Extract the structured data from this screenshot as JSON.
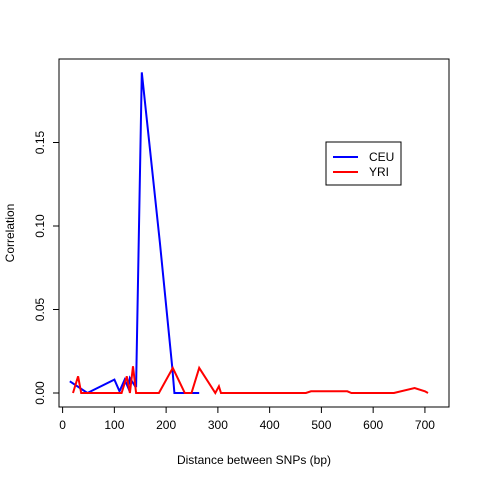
{
  "chart_data": {
    "type": "line",
    "title": "",
    "xlabel": "Distance between SNPs (bp)",
    "ylabel": "Correlation",
    "xlim": [
      0,
      720
    ],
    "ylim": [
      -0.003,
      0.195
    ],
    "x_ticks": [
      0,
      100,
      200,
      300,
      400,
      500,
      600,
      700
    ],
    "x_tick_labels": [
      "0",
      "100",
      "200",
      "300",
      "400",
      "500",
      "600",
      "700"
    ],
    "y_ticks": [
      0,
      0.05,
      0.1,
      0.15
    ],
    "y_tick_labels": [
      "0.00",
      "0.05",
      "0.10",
      "0.15"
    ],
    "grid": false,
    "legend_position": "upper-right",
    "series": [
      {
        "name": "CEU",
        "color": "#0000ff",
        "points": [
          [
            14,
            0.007
          ],
          [
            48,
            0.0
          ],
          [
            100,
            0.008
          ],
          [
            110,
            0.001
          ],
          [
            120,
            0.008
          ],
          [
            127,
            0.003
          ],
          [
            130,
            0.009
          ],
          [
            140,
            0.004
          ],
          [
            142,
            0.004
          ],
          [
            153,
            0.192
          ],
          [
            188,
            0.09
          ],
          [
            212,
            0.015
          ],
          [
            216,
            0.0
          ],
          [
            264,
            0.0
          ]
        ]
      },
      {
        "name": "YRI",
        "color": "#ff0000",
        "points": [
          [
            20,
            0.0
          ],
          [
            30,
            0.01
          ],
          [
            36,
            0.0
          ],
          [
            60,
            0.0
          ],
          [
            70,
            0.0
          ],
          [
            100,
            0.0
          ],
          [
            114,
            0.0
          ],
          [
            124,
            0.01
          ],
          [
            130,
            0.0
          ],
          [
            136,
            0.016
          ],
          [
            142,
            0.0
          ],
          [
            156,
            0.0
          ],
          [
            186,
            0.0
          ],
          [
            213,
            0.015
          ],
          [
            236,
            0.0
          ],
          [
            249,
            0.0
          ],
          [
            264,
            0.015
          ],
          [
            295,
            0.0
          ],
          [
            302,
            0.004
          ],
          [
            306,
            0.0
          ],
          [
            470,
            0.0
          ],
          [
            480,
            0.001
          ],
          [
            550,
            0.001
          ],
          [
            558,
            0.0
          ],
          [
            640,
            0.0
          ],
          [
            680,
            0.003
          ],
          [
            700,
            0.001
          ],
          [
            706,
            0.0
          ]
        ]
      }
    ]
  }
}
